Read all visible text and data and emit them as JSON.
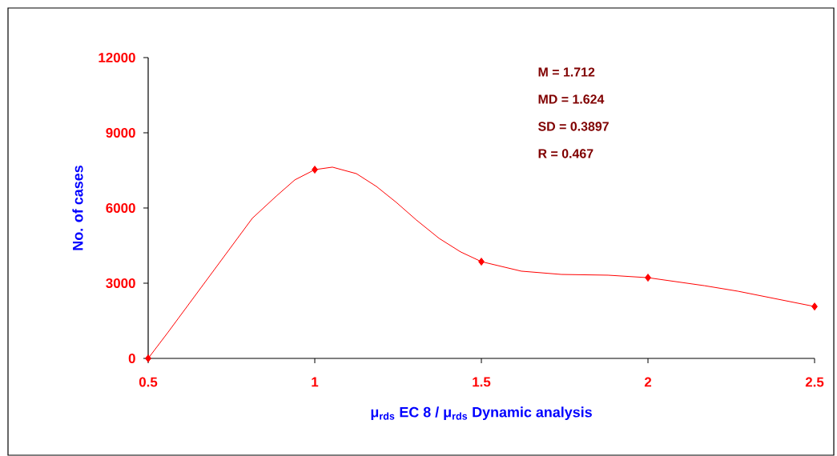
{
  "chart_data": {
    "type": "line",
    "xlabel": "μ$_{rds}$ EC 8 / μ$_{rds}$ Dynamic analysis",
    "ylabel": "No. of cases",
    "xlim": [
      0.5,
      2.5
    ],
    "xticks": [
      0.5,
      1,
      1.5,
      2,
      2.5
    ],
    "ylim": [
      0,
      12000
    ],
    "yticks": [
      0,
      3000,
      6000,
      9000,
      12000
    ],
    "annotations": [
      "M =   1.712",
      "MD = 1.624",
      "SD =  0.3897",
      "R =  0.467"
    ],
    "series": [
      {
        "type": "line",
        "color": "#ff0000",
        "marker": "none",
        "x": [
          0.5,
          0.56,
          0.8125,
          0.885,
          0.94,
          1.0,
          1.053,
          1.125,
          1.185,
          1.245,
          1.305,
          1.373,
          1.4375,
          1.5,
          1.62,
          1.74,
          1.88,
          2.0,
          2.17,
          2.27,
          2.5
        ],
        "values": [
          0,
          1050,
          5590,
          6480,
          7120,
          7530,
          7630,
          7370,
          6860,
          6220,
          5520,
          4790,
          4250,
          3860,
          3480,
          3350,
          3320,
          3220,
          2900,
          2680,
          2070
        ]
      },
      {
        "type": "scatter",
        "color": "#ff0000",
        "marker": "diamond",
        "x": [
          0.5,
          1,
          1.5,
          2,
          2.5
        ],
        "values": [
          0,
          7530,
          3860,
          3220,
          2070
        ]
      }
    ]
  }
}
